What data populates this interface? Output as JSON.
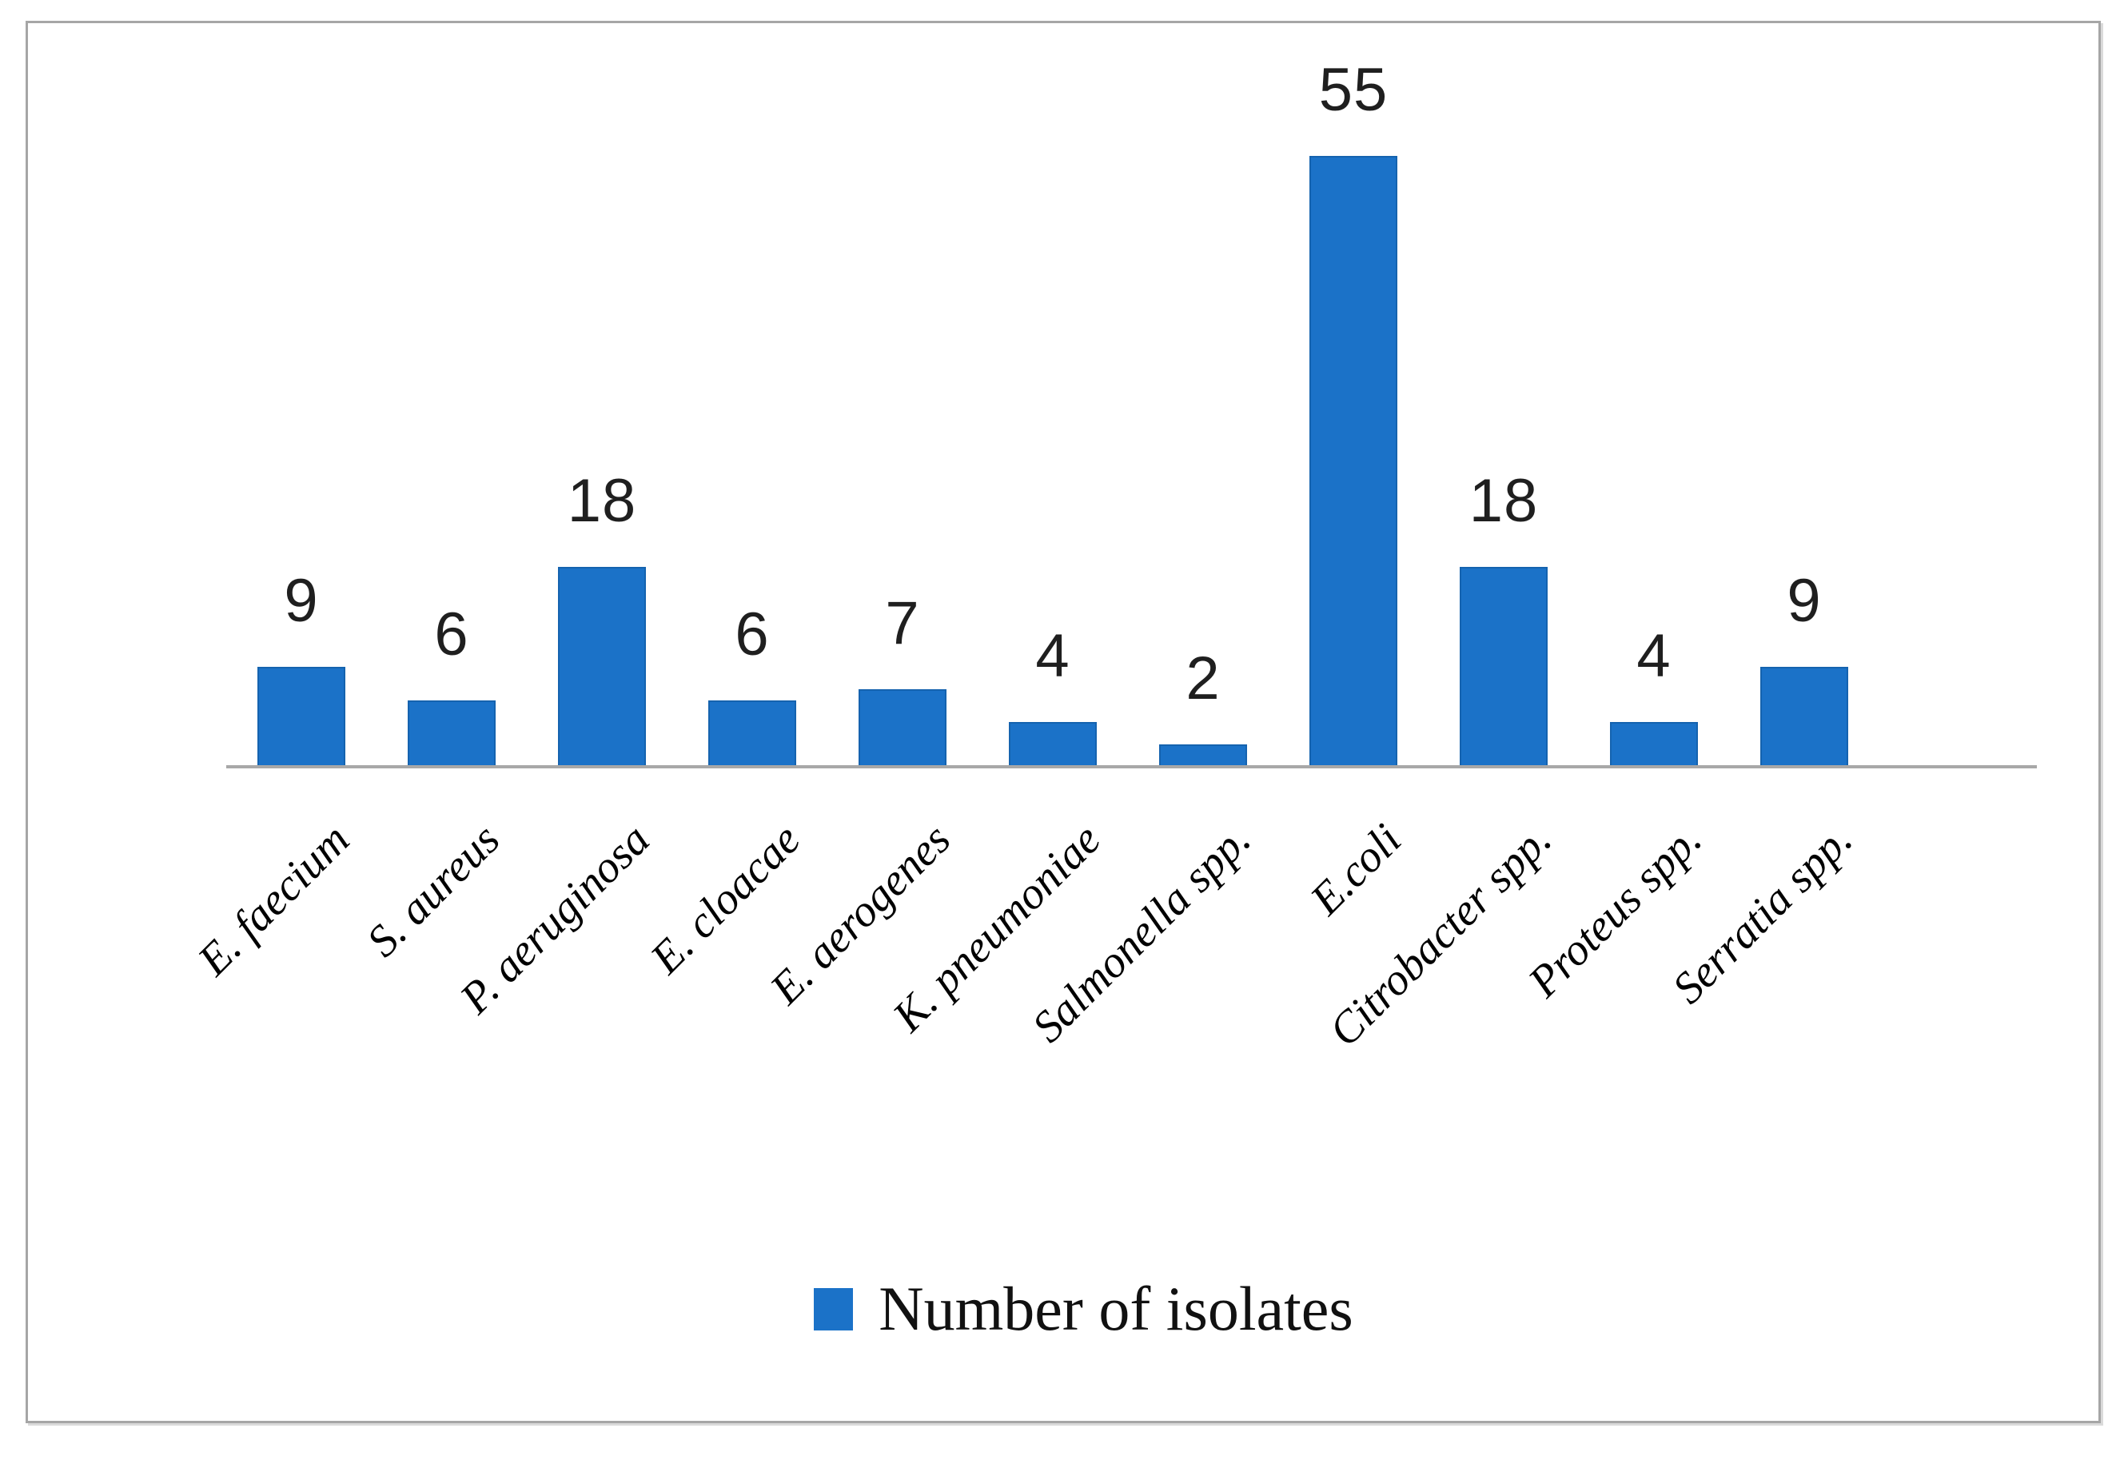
{
  "chart_data": {
    "type": "bar",
    "title": "",
    "xlabel": "",
    "ylabel": "",
    "categories": [
      "E. faecium",
      "S. aureus",
      "P. aeruginosa",
      "E. cloacae",
      "E. aerogenes",
      "K. pneumoniae",
      "Salmonella spp.",
      "E.coli",
      "Citrobacter spp.",
      "Proteus spp.",
      "Serratia spp."
    ],
    "values": [
      9,
      6,
      18,
      6,
      7,
      4,
      2,
      55,
      18,
      4,
      9
    ],
    "series": [
      {
        "name": "Number of isolates",
        "values": [
          9,
          6,
          18,
          6,
          7,
          4,
          2,
          55,
          18,
          4,
          9
        ]
      }
    ],
    "data_labels_shown": true,
    "ylim": [
      0,
      55
    ],
    "grid": false,
    "y_axis_shown": false,
    "x_tick_rotation_deg": -45,
    "legend": {
      "label": "Number of isolates",
      "position": "bottom-center"
    },
    "colors": {
      "bar_fill": "#1B72C8",
      "bar_border": "#1563AF",
      "axis_line": "#A8A8A8",
      "frame_border": "#A6A6A6",
      "value_label_text": "#1F1F1F",
      "category_label_text": "#000000",
      "legend_text": "#111111",
      "background": "#FFFFFF"
    }
  }
}
